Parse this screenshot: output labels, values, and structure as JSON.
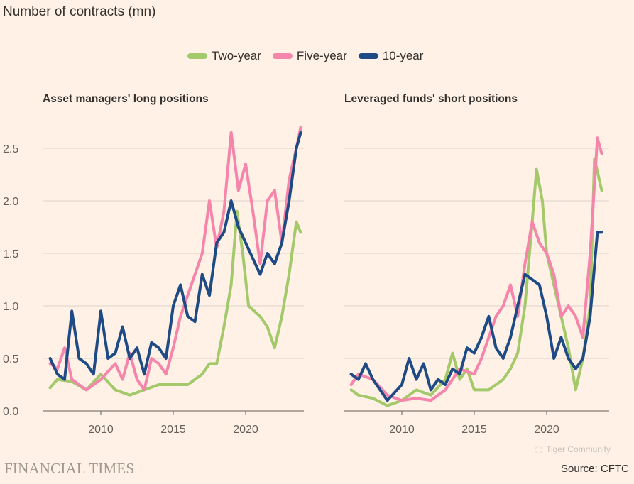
{
  "ylabel": "Number of contracts (mn)",
  "colors": {
    "Two-year": "#a3c96b",
    "Five-year": "#f585ab",
    "10-year": "#1e4b85",
    "grid": "#dcd3ca",
    "background": "#fff1e5"
  },
  "legend": [
    "Two-year",
    "Five-year",
    "10-year"
  ],
  "footer": {
    "brand": "FINANCIAL TIMES",
    "source": "Source: CFTC",
    "watermark": "Tiger Community"
  },
  "chart_data": [
    {
      "type": "line",
      "title": "Asset managers' long positions",
      "ylim": [
        0,
        2.5
      ],
      "yticks": [
        "0.0",
        "0.5",
        "1.0",
        "1.5",
        "2.0",
        "2.5"
      ],
      "xticks": [
        "2010",
        "2015",
        "2020"
      ],
      "xlim": [
        2006.3,
        2023.9
      ],
      "grid": true,
      "series": [
        {
          "name": "Two-year",
          "x": [
            2006.5,
            2007,
            2008,
            2009,
            2010,
            2011,
            2012,
            2013,
            2014,
            2015,
            2016,
            2017,
            2017.5,
            2018,
            2018.5,
            2019,
            2019.4,
            2019.8,
            2020.2,
            2021,
            2021.5,
            2022,
            2022.5,
            2023,
            2023.5,
            2023.8
          ],
          "values": [
            0.22,
            0.3,
            0.28,
            0.2,
            0.35,
            0.2,
            0.15,
            0.2,
            0.25,
            0.25,
            0.25,
            0.35,
            0.45,
            0.45,
            0.8,
            1.2,
            1.9,
            1.5,
            1.0,
            0.9,
            0.8,
            0.6,
            0.9,
            1.3,
            1.8,
            1.7
          ]
        },
        {
          "name": "Five-year",
          "x": [
            2006.5,
            2007,
            2007.5,
            2008,
            2009,
            2010,
            2011,
            2011.5,
            2012,
            2012.5,
            2013,
            2013.5,
            2014,
            2014.5,
            2015,
            2015.5,
            2016,
            2016.5,
            2017,
            2017.5,
            2018,
            2018.5,
            2019,
            2019.5,
            2020,
            2020.5,
            2021,
            2021.5,
            2022,
            2022.5,
            2023,
            2023.5,
            2023.8
          ],
          "values": [
            0.45,
            0.4,
            0.6,
            0.3,
            0.2,
            0.3,
            0.45,
            0.3,
            0.55,
            0.3,
            0.2,
            0.5,
            0.45,
            0.35,
            0.6,
            0.9,
            1.1,
            1.3,
            1.5,
            2.0,
            1.55,
            1.9,
            2.65,
            2.1,
            2.35,
            1.9,
            1.4,
            2.0,
            2.1,
            1.6,
            2.2,
            2.5,
            2.7
          ]
        },
        {
          "name": "10-year",
          "x": [
            2006.5,
            2007,
            2007.5,
            2008,
            2008.5,
            2009,
            2009.5,
            2010,
            2010.5,
            2011,
            2011.5,
            2012,
            2012.5,
            2013,
            2013.5,
            2014,
            2014.5,
            2015,
            2015.5,
            2016,
            2016.5,
            2017,
            2017.5,
            2018,
            2018.5,
            2019,
            2019.5,
            2020,
            2020.5,
            2021,
            2021.5,
            2022,
            2022.5,
            2023,
            2023.5,
            2023.8
          ],
          "values": [
            0.5,
            0.35,
            0.3,
            0.95,
            0.5,
            0.45,
            0.35,
            0.95,
            0.5,
            0.55,
            0.8,
            0.5,
            0.6,
            0.35,
            0.65,
            0.6,
            0.5,
            1.0,
            1.2,
            0.9,
            0.85,
            1.3,
            1.1,
            1.6,
            1.7,
            2.0,
            1.75,
            1.6,
            1.45,
            1.3,
            1.5,
            1.4,
            1.6,
            2.0,
            2.5,
            2.65
          ]
        }
      ]
    },
    {
      "type": "line",
      "title": "Leveraged funds' short positions",
      "ylim": [
        0,
        2.5
      ],
      "xticks": [
        "2010",
        "2015",
        "2020"
      ],
      "xlim": [
        2006.3,
        2023.9
      ],
      "grid": true,
      "series": [
        {
          "name": "Two-year",
          "x": [
            2006.5,
            2007,
            2008,
            2009,
            2010,
            2011,
            2012,
            2013,
            2013.5,
            2014,
            2014.5,
            2015,
            2016,
            2016.5,
            2017,
            2017.5,
            2018,
            2018.5,
            2019,
            2019.3,
            2019.7,
            2020,
            2020.5,
            2021,
            2021.5,
            2022,
            2022.5,
            2023,
            2023.3,
            2023.8
          ],
          "values": [
            0.2,
            0.15,
            0.12,
            0.05,
            0.1,
            0.2,
            0.15,
            0.3,
            0.55,
            0.3,
            0.4,
            0.2,
            0.2,
            0.25,
            0.3,
            0.4,
            0.55,
            1.0,
            1.8,
            2.3,
            2.0,
            1.5,
            1.2,
            0.9,
            0.6,
            0.2,
            0.5,
            1.0,
            2.4,
            2.1
          ]
        },
        {
          "name": "Five-year",
          "x": [
            2006.5,
            2007,
            2008,
            2009,
            2010,
            2011,
            2012,
            2013,
            2014,
            2015,
            2015.5,
            2016,
            2016.5,
            2017,
            2017.5,
            2018,
            2018.5,
            2019,
            2019.5,
            2020,
            2020.5,
            2021,
            2021.5,
            2022,
            2022.5,
            2023,
            2023.5,
            2023.8
          ],
          "values": [
            0.25,
            0.35,
            0.3,
            0.15,
            0.1,
            0.12,
            0.1,
            0.2,
            0.4,
            0.35,
            0.5,
            0.7,
            0.9,
            1.0,
            1.2,
            0.9,
            1.4,
            1.8,
            1.6,
            1.5,
            1.3,
            0.9,
            1.0,
            0.9,
            0.7,
            1.5,
            2.6,
            2.45
          ]
        },
        {
          "name": "10-year",
          "x": [
            2006.5,
            2007,
            2007.5,
            2008,
            2009,
            2010,
            2010.5,
            2011,
            2011.5,
            2012,
            2012.5,
            2013,
            2013.5,
            2014,
            2014.5,
            2015,
            2015.5,
            2016,
            2016.5,
            2017,
            2017.5,
            2018,
            2018.5,
            2019,
            2019.5,
            2020,
            2020.5,
            2021,
            2021.5,
            2022,
            2022.5,
            2023,
            2023.5,
            2023.8
          ],
          "values": [
            0.35,
            0.3,
            0.45,
            0.3,
            0.1,
            0.25,
            0.5,
            0.3,
            0.45,
            0.2,
            0.3,
            0.25,
            0.4,
            0.35,
            0.6,
            0.55,
            0.7,
            0.9,
            0.6,
            0.5,
            0.7,
            1.0,
            1.3,
            1.25,
            1.2,
            0.9,
            0.5,
            0.7,
            0.5,
            0.4,
            0.5,
            0.9,
            1.7,
            1.7
          ]
        }
      ]
    }
  ]
}
